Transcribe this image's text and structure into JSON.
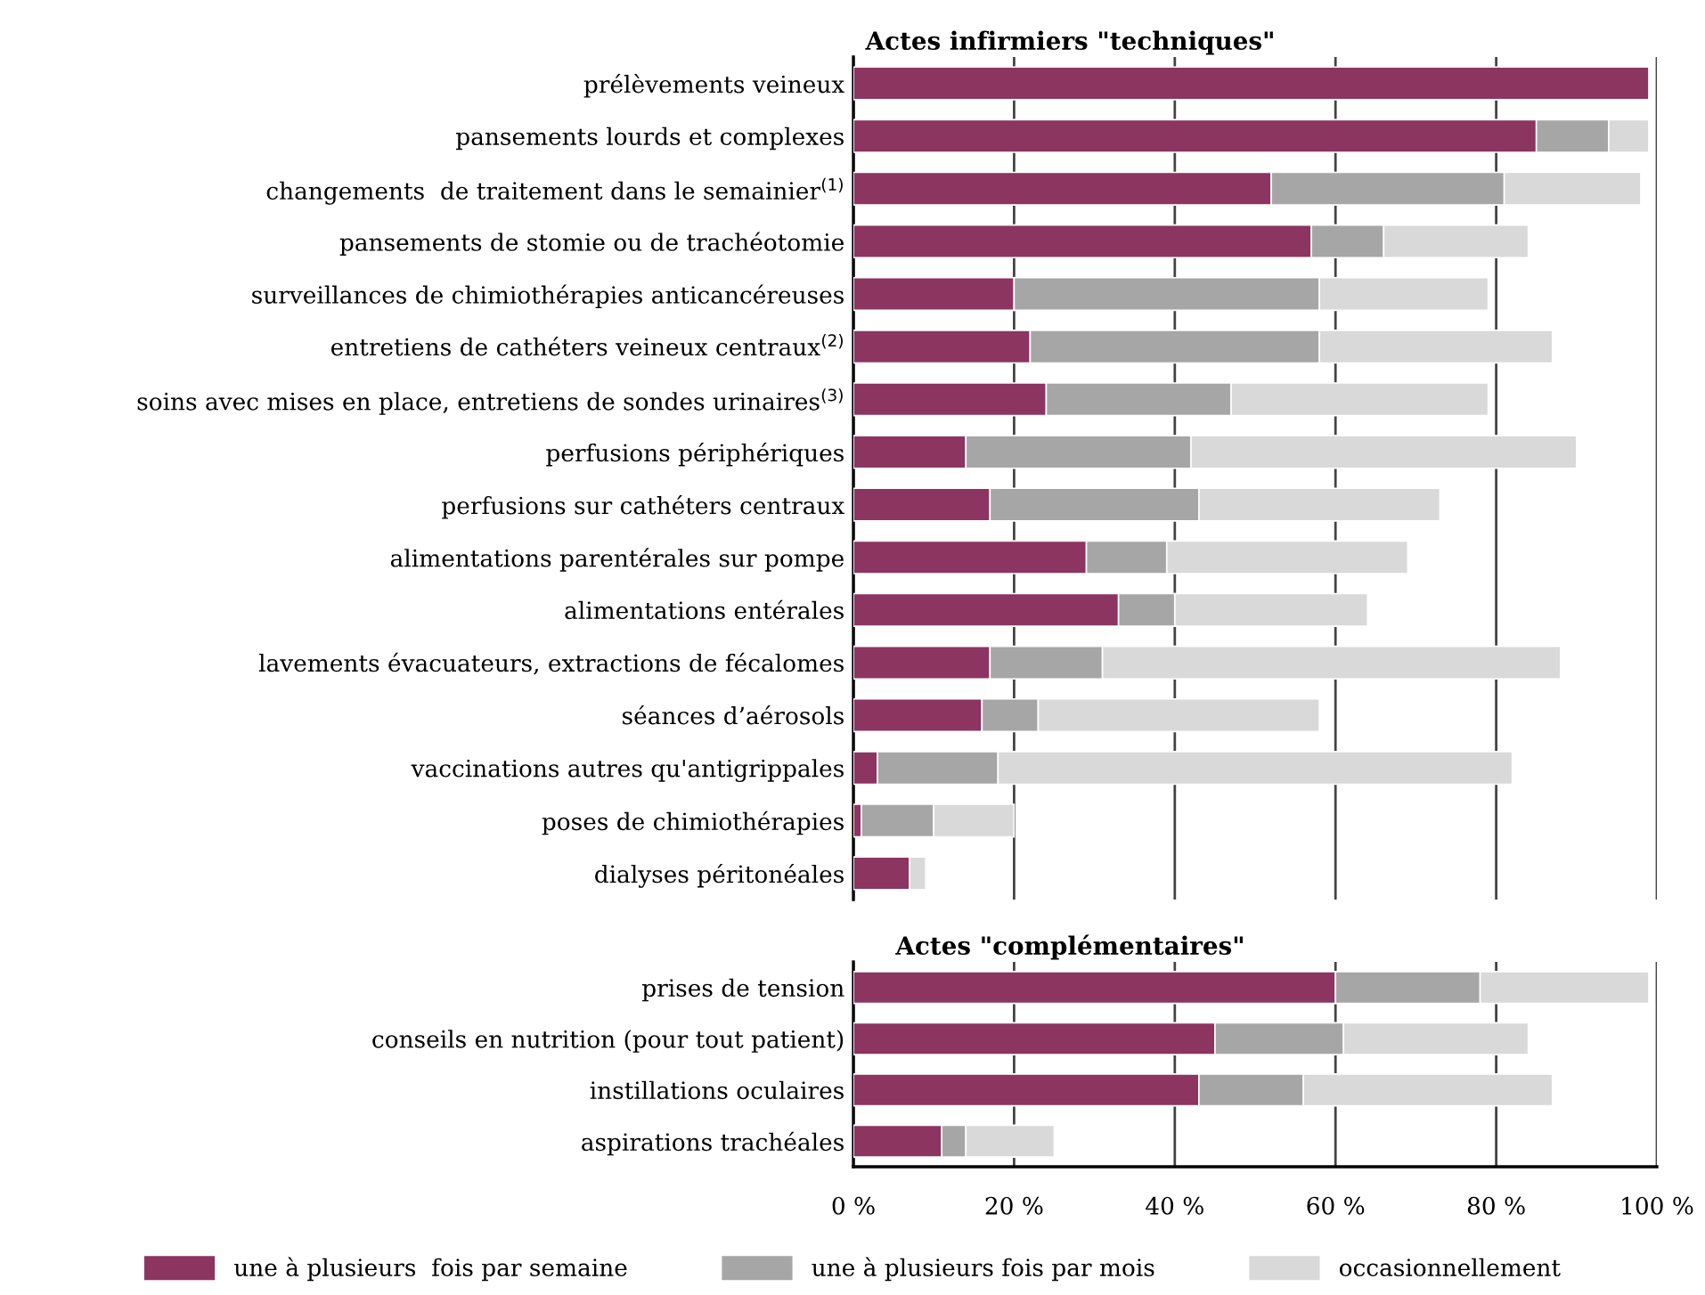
{
  "chart_data": [
    {
      "type": "bar",
      "orientation": "horizontal",
      "stacked": true,
      "title": "Actes infirmiers \"techniques\"",
      "categories": [
        "prélèvements veineux",
        "pansements lourds et complexes",
        "changements  de traitement dans le semainier$^{(1)}$",
        "pansements de stomie ou de trachéotomie",
        "surveillances de chimiothérapies anticancéreuses",
        "entretiens de cathéters veineux centraux$^{(2)}$",
        "soins avec mises en place, entretiens de sondes urinaires$^{(3)}$",
        "perfusions périphériques",
        "perfusions sur cathéters centraux",
        "alimentations parentérales sur pompe",
        "alimentations entérales",
        "lavements évacuateurs, extractions de fécalomes",
        "séances d’aérosols",
        "vaccinations autres qu'antigrippales",
        "poses de chimiothérapies",
        "dialyses péritonéales"
      ],
      "series": [
        {
          "color": "#8b3560",
          "values": [
            99,
            85,
            52,
            57,
            20,
            22,
            24,
            14,
            17,
            29,
            33,
            17,
            16,
            3,
            1,
            7
          ]
        },
        {
          "color": "#a6a6a6",
          "values": [
            0,
            9,
            29,
            9,
            38,
            36,
            23,
            28,
            26,
            10,
            7,
            14,
            7,
            15,
            9,
            0
          ]
        },
        {
          "color": "#d9d9d9",
          "values": [
            0,
            5,
            17,
            18,
            21,
            29,
            32,
            48,
            30,
            30,
            24,
            57,
            35,
            64,
            10,
            2
          ]
        }
      ],
      "xlim": [
        0,
        100
      ],
      "xticks": [
        {
          "value": 0,
          "label": null
        },
        {
          "value": 20,
          "label": null
        },
        {
          "value": 40,
          "label": null
        },
        {
          "value": 60,
          "label": null
        },
        {
          "value": 80,
          "label": null
        },
        {
          "value": 100,
          "label": null
        }
      ],
      "grid": "x",
      "tick_labels": "y"
    },
    {
      "type": "bar",
      "orientation": "horizontal",
      "stacked": true,
      "title": "Actes \"complémentaires\"",
      "categories": [
        "prises de tension",
        "conseils en nutrition (pour tout patient)",
        "instillations oculaires",
        "aspirations trachéales"
      ],
      "series": [
        {
          "name": "une à plusieurs  fois par semaine",
          "color": "#8b3560",
          "values": [
            60,
            45,
            43,
            11
          ]
        },
        {
          "name": "une à plusieurs fois par mois",
          "color": "#a6a6a6",
          "values": [
            18,
            16,
            13,
            3
          ]
        },
        {
          "name": "occasionnellement",
          "color": "#d9d9d9",
          "values": [
            21,
            23,
            31,
            11
          ]
        }
      ],
      "xlim": [
        0,
        100
      ],
      "xticks": [
        {
          "value": 0,
          "label": "0 %"
        },
        {
          "value": 20,
          "label": "20 %"
        },
        {
          "value": 40,
          "label": "40 %"
        },
        {
          "value": 60,
          "label": "60 %"
        },
        {
          "value": 80,
          "label": "80 %"
        },
        {
          "value": 100,
          "label": "100 %"
        }
      ],
      "grid": "x",
      "legend": "bottom"
    }
  ]
}
